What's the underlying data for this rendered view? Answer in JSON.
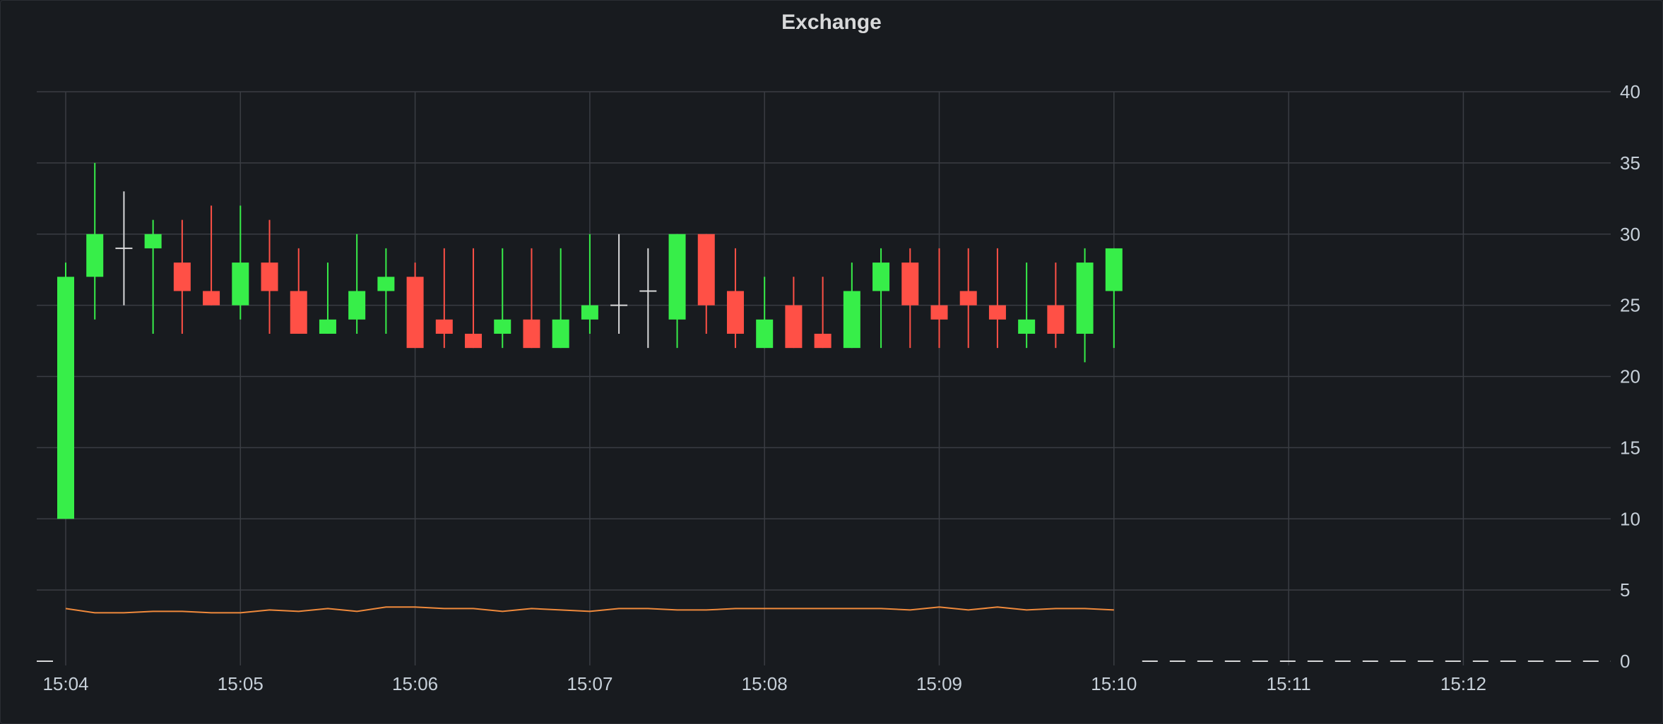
{
  "panel": {
    "title": "Exchange"
  },
  "chart_data": {
    "type": "candlestick",
    "title": "Exchange",
    "xlabel": "",
    "ylabel": "",
    "ylim": [
      0,
      40
    ],
    "x_range": [
      "15:04",
      "15:12:50"
    ],
    "y_ticks": [
      0,
      5,
      10,
      15,
      20,
      25,
      30,
      35,
      40
    ],
    "x_ticks": [
      "15:04",
      "15:05",
      "15:06",
      "15:07",
      "15:08",
      "15:09",
      "15:10",
      "15:11",
      "15:12"
    ],
    "grid": true,
    "y_axis_side": "right",
    "colors": {
      "up": "#37ee49",
      "down": "#ff5046",
      "flat": "#d8d9da",
      "line": "#f08a3c",
      "grid": "#3a3d43"
    },
    "series": [
      {
        "type": "candlestick",
        "columns": [
          "time",
          "open",
          "high",
          "low",
          "close"
        ],
        "candles": [
          [
            "15:04:00",
            10,
            28,
            10,
            27
          ],
          [
            "15:04:10",
            27,
            35,
            24,
            30
          ],
          [
            "15:04:20",
            29,
            33,
            25,
            29
          ],
          [
            "15:04:30",
            29,
            31,
            23,
            30
          ],
          [
            "15:04:40",
            28,
            31,
            23,
            26
          ],
          [
            "15:04:50",
            26,
            32,
            25,
            25
          ],
          [
            "15:05:00",
            25,
            32,
            24,
            28
          ],
          [
            "15:05:10",
            28,
            31,
            23,
            26
          ],
          [
            "15:05:20",
            26,
            29,
            23,
            23
          ],
          [
            "15:05:30",
            23,
            28,
            23,
            24
          ],
          [
            "15:05:40",
            24,
            30,
            23,
            26
          ],
          [
            "15:05:50",
            26,
            29,
            23,
            27
          ],
          [
            "15:06:00",
            27,
            28,
            22,
            22
          ],
          [
            "15:06:10",
            24,
            29,
            22,
            23
          ],
          [
            "15:06:20",
            23,
            29,
            22,
            22
          ],
          [
            "15:06:30",
            23,
            29,
            22,
            24
          ],
          [
            "15:06:40",
            24,
            29,
            22,
            22
          ],
          [
            "15:06:50",
            22,
            29,
            22,
            24
          ],
          [
            "15:07:00",
            24,
            30,
            23,
            25
          ],
          [
            "15:07:10",
            25,
            30,
            23,
            25
          ],
          [
            "15:07:20",
            26,
            29,
            22,
            26
          ],
          [
            "15:07:30",
            24,
            30,
            22,
            30
          ],
          [
            "15:07:40",
            30,
            30,
            23,
            25
          ],
          [
            "15:07:50",
            26,
            29,
            22,
            23
          ],
          [
            "15:08:00",
            22,
            27,
            22,
            24
          ],
          [
            "15:08:10",
            25,
            27,
            22,
            22
          ],
          [
            "15:08:20",
            23,
            27,
            22,
            22
          ],
          [
            "15:08:30",
            22,
            28,
            22,
            26
          ],
          [
            "15:08:40",
            26,
            29,
            22,
            28
          ],
          [
            "15:08:50",
            28,
            29,
            22,
            25
          ],
          [
            "15:09:00",
            25,
            29,
            22,
            24
          ],
          [
            "15:09:10",
            26,
            29,
            22,
            25
          ],
          [
            "15:09:20",
            25,
            29,
            22,
            24
          ],
          [
            "15:09:30",
            23,
            28,
            22,
            24
          ],
          [
            "15:09:40",
            25,
            28,
            22,
            23
          ],
          [
            "15:09:50",
            23,
            29,
            21,
            28
          ],
          [
            "15:10:00",
            26,
            29,
            22,
            29
          ]
        ]
      },
      {
        "type": "line",
        "x": [
          "15:04:00",
          "15:04:10",
          "15:04:20",
          "15:04:30",
          "15:04:40",
          "15:04:50",
          "15:05:00",
          "15:05:10",
          "15:05:20",
          "15:05:30",
          "15:05:40",
          "15:05:50",
          "15:06:00",
          "15:06:10",
          "15:06:20",
          "15:06:30",
          "15:06:40",
          "15:06:50",
          "15:07:00",
          "15:07:10",
          "15:07:20",
          "15:07:30",
          "15:07:40",
          "15:07:50",
          "15:08:00",
          "15:08:10",
          "15:08:20",
          "15:08:30",
          "15:08:40",
          "15:08:50",
          "15:09:00",
          "15:09:10",
          "15:09:20",
          "15:09:30",
          "15:09:40",
          "15:09:50",
          "15:10:00"
        ],
        "values": [
          3.7,
          3.4,
          3.4,
          3.5,
          3.5,
          3.4,
          3.4,
          3.6,
          3.5,
          3.7,
          3.5,
          3.8,
          3.8,
          3.7,
          3.7,
          3.5,
          3.7,
          3.6,
          3.5,
          3.7,
          3.7,
          3.6,
          3.6,
          3.7,
          3.7,
          3.7,
          3.7,
          3.7,
          3.7,
          3.6,
          3.8,
          3.6,
          3.8,
          3.6,
          3.7,
          3.7,
          3.6
        ]
      }
    ]
  }
}
